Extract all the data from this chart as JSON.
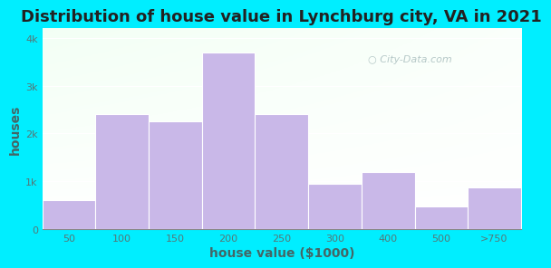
{
  "title": "Distribution of house value in Lynchburg city, VA in 2021",
  "xlabel": "house value ($1000)",
  "ylabel": "houses",
  "categories": [
    "50",
    "100",
    "150",
    "200",
    "250",
    "300",
    "400",
    "500",
    ">750"
  ],
  "values": [
    600,
    2400,
    2250,
    3700,
    2400,
    950,
    1200,
    480,
    880
  ],
  "bar_color": "#c9b8e8",
  "bar_edge_color": "#ffffff",
  "yticks": [
    0,
    1000,
    2000,
    3000,
    4000
  ],
  "ytick_labels": [
    "0",
    "1k",
    "2k",
    "3k",
    "4k"
  ],
  "ylim": [
    0,
    4200
  ],
  "bg_outer": "#00eeff",
  "title_fontsize": 13,
  "axis_label_fontsize": 10,
  "tick_fontsize": 8,
  "tick_color": "#557777",
  "label_color": "#446666",
  "watermark_text": " City-Data.com",
  "watermark_color": "#aabfbf"
}
